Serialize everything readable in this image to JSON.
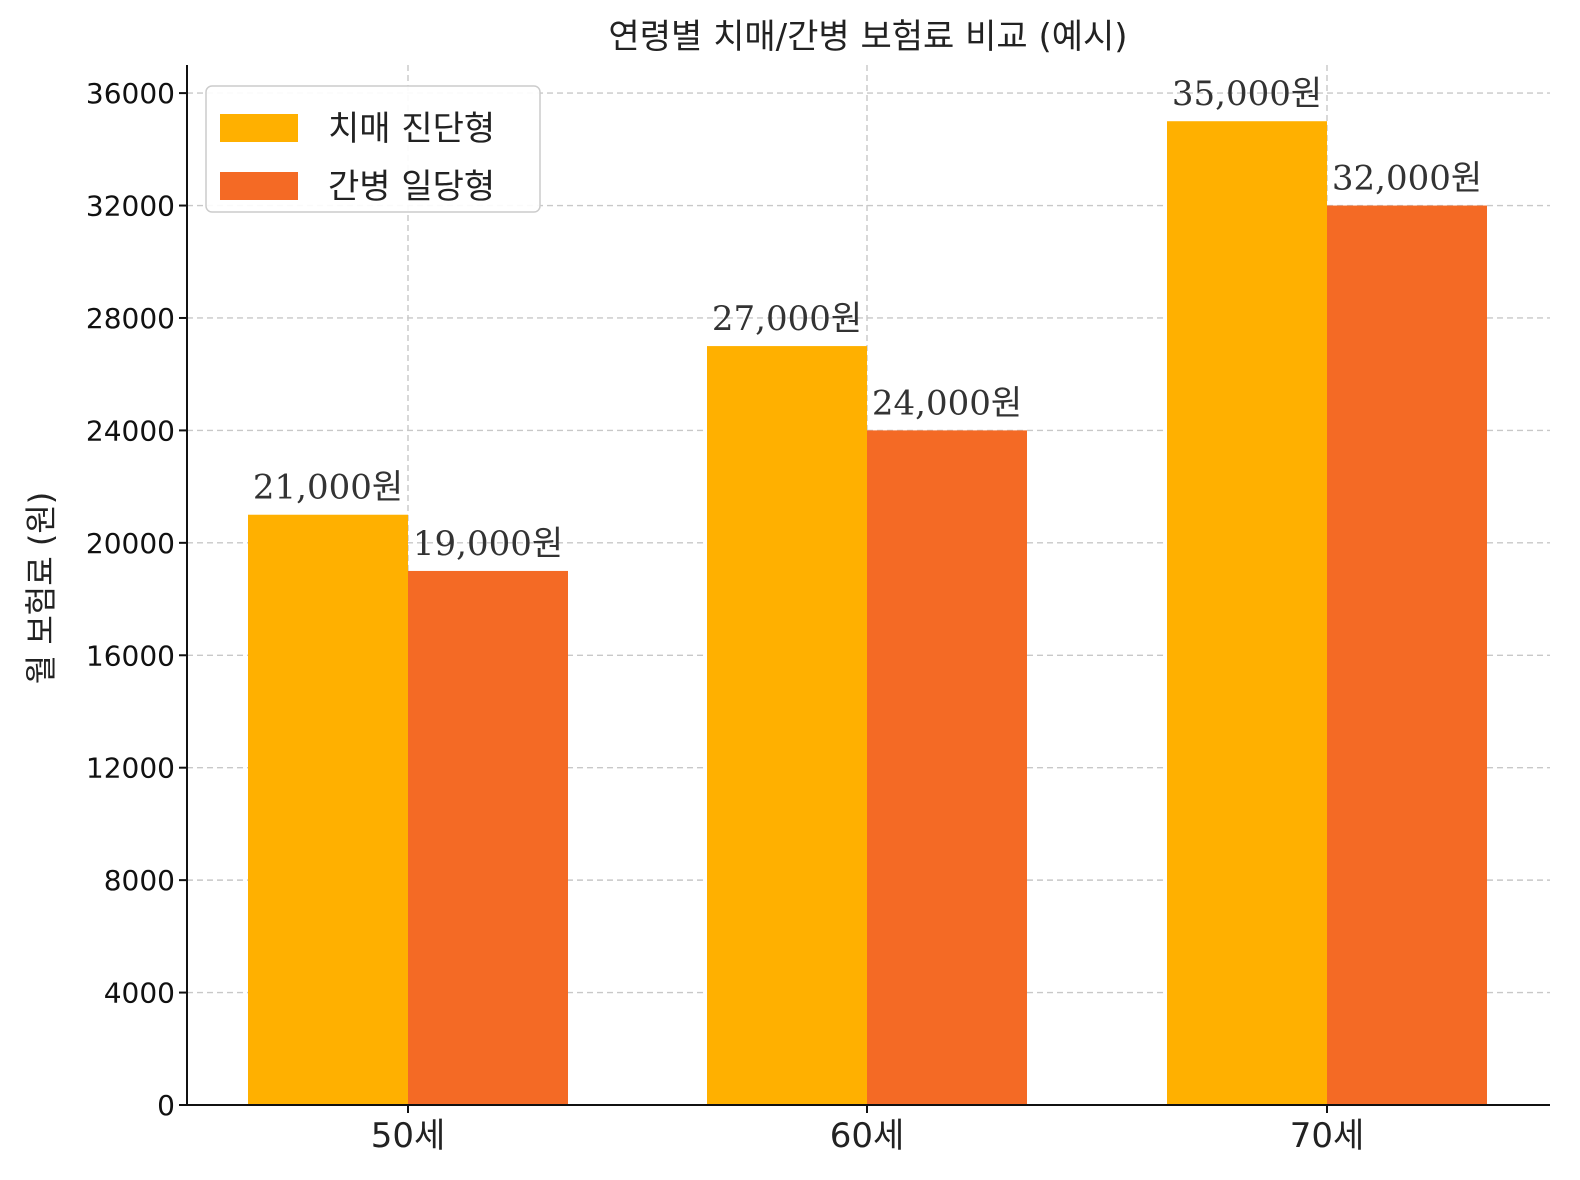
{
  "chart_data": {
    "type": "bar",
    "title": "연령별 치매/간병 보험료 비교 (예시)",
    "xlabel": "",
    "ylabel": "월 보험료 (원)",
    "categories": [
      "50세",
      "60세",
      "70세"
    ],
    "series": [
      {
        "name": "치매 진단형",
        "color": "#FFB000",
        "values": [
          21000,
          27000,
          35000
        ],
        "labels": [
          "21,000원",
          "27,000원",
          "35,000원"
        ]
      },
      {
        "name": "간병 일당형",
        "color": "#F46A25",
        "values": [
          19000,
          24000,
          32000
        ],
        "labels": [
          "19,000원",
          "24,000원",
          "32,000원"
        ]
      }
    ],
    "ylim": [
      0,
      37000
    ],
    "yticks": [
      "0",
      "4000",
      "8000",
      "12000",
      "16000",
      "20000",
      "24000",
      "28000",
      "32000",
      "36000"
    ],
    "grid": true,
    "legend_position": "top-left"
  }
}
